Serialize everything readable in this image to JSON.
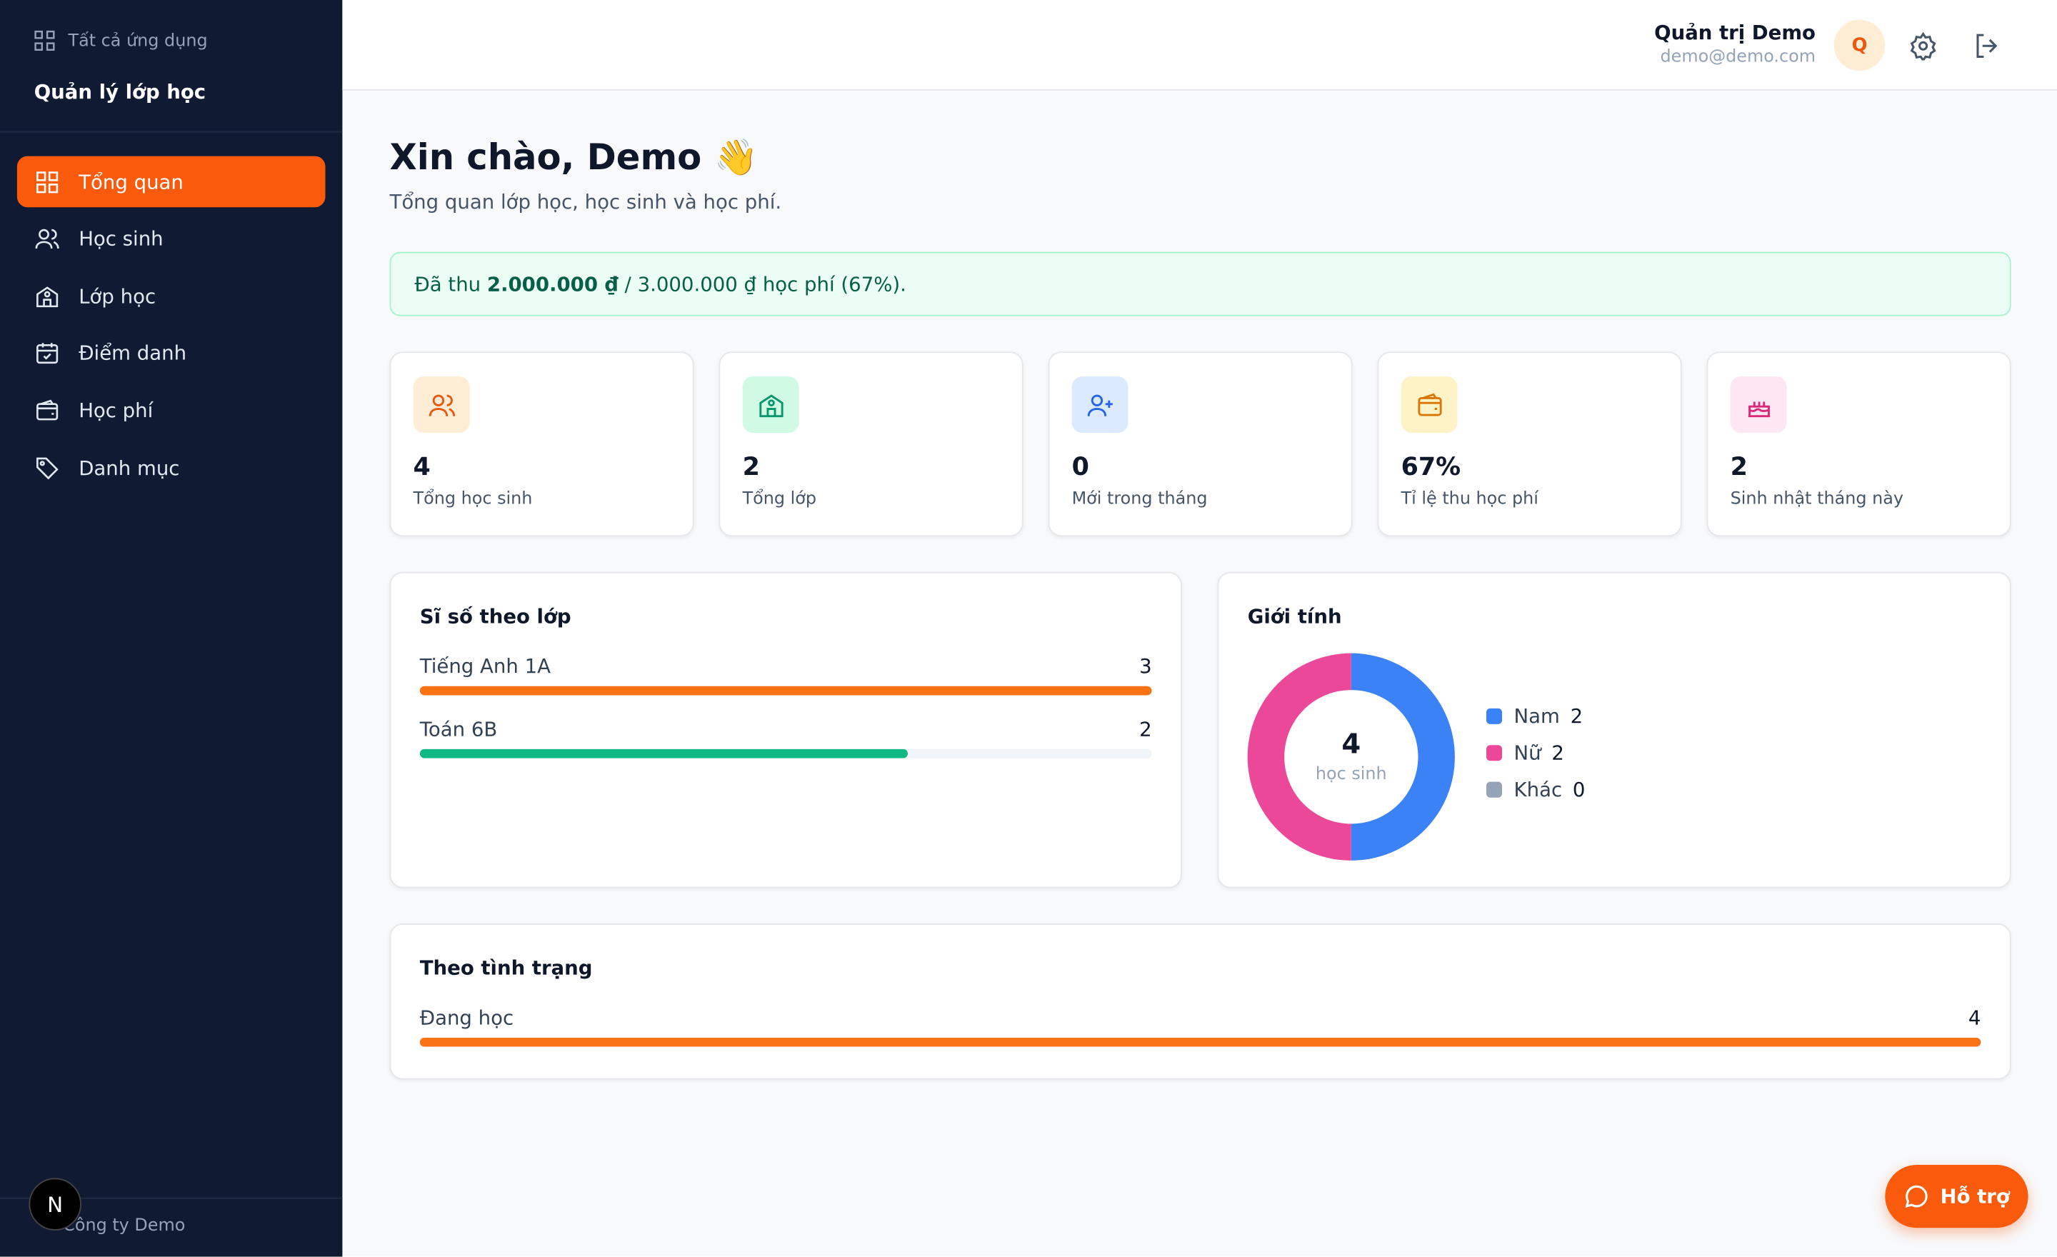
{
  "sidebar": {
    "apps_label": "Tất cả ứng dụng",
    "app_title": "Quản lý lớp học",
    "nav": [
      "Tổng quan",
      "Học sinh",
      "Lớp học",
      "Điểm danh",
      "Học phí",
      "Danh mục"
    ],
    "company": "Công ty Demo",
    "badge": "N"
  },
  "header": {
    "user_name": "Quản trị Demo",
    "email": "demo@demo.com",
    "avatar": "Q"
  },
  "page": {
    "greeting": "Xin chào, Demo 👋",
    "subtitle": "Tổng quan lớp học, học sinh và học phí."
  },
  "banner": {
    "prefix": "Đã thu ",
    "amount": "2.000.000 ₫",
    "suffix": " / 3.000.000 ₫ học phí (67%)."
  },
  "stats": [
    {
      "value": "4",
      "label": "Tổng học sinh"
    },
    {
      "value": "2",
      "label": "Tổng lớp"
    },
    {
      "value": "0",
      "label": "Mới trong tháng"
    },
    {
      "value": "67%",
      "label": "Tỉ lệ thu học phí"
    },
    {
      "value": "2",
      "label": "Sinh nhật tháng này"
    }
  ],
  "class_sizes": {
    "title": "Sĩ số theo lớp",
    "items": [
      {
        "label": "Tiếng Anh 1A",
        "value": 3,
        "color": "#f97316"
      },
      {
        "label": "Toán 6B",
        "value": 2,
        "color": "#10b981"
      }
    ]
  },
  "gender": {
    "title": "Giới tính",
    "total": 4,
    "total_label": "học sinh",
    "items": [
      {
        "label": "Nam",
        "value": 2,
        "color": "#3b82f6"
      },
      {
        "label": "Nữ",
        "value": 2,
        "color": "#ec4899"
      },
      {
        "label": "Khác",
        "value": 0,
        "color": "#94a3b8"
      }
    ]
  },
  "status": {
    "title": "Theo tình trạng",
    "items": [
      {
        "label": "Đang học",
        "value": 4,
        "color": "#f97316"
      }
    ]
  },
  "support": {
    "label": "Hỗ trợ"
  }
}
